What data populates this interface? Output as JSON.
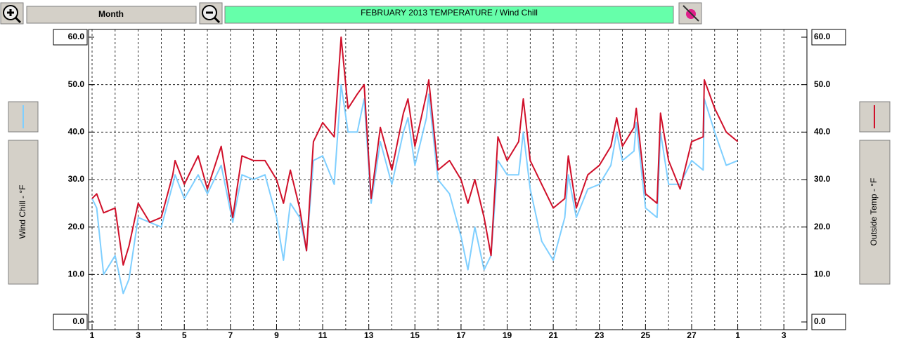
{
  "toolbar": {
    "period": "Month"
  },
  "chart_data": {
    "type": "line",
    "title": "FEBRUARY  2013   TEMPERATURE / Wind Chill",
    "x": [
      1,
      1.2,
      1.5,
      2,
      2.35,
      2.6,
      3,
      3.5,
      4,
      4.5,
      4.6,
      5,
      5.6,
      6,
      6.6,
      7.1,
      7.5,
      8,
      8.5,
      9,
      9.3,
      9.6,
      10,
      10.3,
      10.6,
      11,
      11.5,
      11.8,
      12.1,
      12.5,
      12.8,
      13.1,
      13.5,
      14,
      14.5,
      14.7,
      15,
      15.5,
      15.6,
      16,
      16.5,
      17,
      17.3,
      17.6,
      18,
      18.3,
      18.6,
      19,
      19.5,
      19.7,
      20,
      20.5,
      21,
      21.5,
      21.65,
      22,
      22.5,
      23,
      23.5,
      23.75,
      24,
      24.5,
      24.6,
      25,
      25.5,
      25.65,
      26,
      26.5,
      27,
      27.5,
      27.55,
      28,
      28.5,
      29
    ],
    "series": [
      {
        "name": "Wind Chill - °F",
        "color": "#7fcfff",
        "values": [
          26,
          24,
          10,
          14,
          6,
          9,
          22,
          21,
          20,
          29,
          31,
          26,
          31,
          27,
          33,
          21,
          31,
          30,
          31,
          22,
          13,
          25,
          22,
          15,
          34,
          35,
          29,
          50,
          40,
          40,
          47,
          25,
          38,
          29,
          40,
          43,
          33,
          43,
          48,
          30,
          27,
          18,
          11,
          20,
          11,
          14,
          34,
          31,
          31,
          40,
          28,
          17,
          13,
          22,
          31,
          22,
          28,
          29,
          33,
          40,
          34,
          36,
          42,
          24,
          22,
          40,
          29,
          29,
          34,
          32,
          47,
          40,
          33,
          34
        ]
      },
      {
        "name": "Outside Temp - °F",
        "color": "#d0102a",
        "axis": "y2",
        "values": [
          26,
          27,
          23,
          24,
          12,
          16,
          25,
          21,
          22,
          31,
          34,
          29,
          35,
          28,
          37,
          22,
          35,
          34,
          34,
          30,
          25,
          32,
          24,
          15,
          38,
          42,
          39,
          60,
          45,
          48,
          50,
          26,
          41,
          32,
          44,
          47,
          37,
          48,
          51,
          32,
          34,
          30,
          25,
          30,
          22,
          14,
          39,
          34,
          38,
          47,
          34,
          29,
          24,
          26,
          35,
          24,
          31,
          33,
          37,
          43,
          37,
          41,
          45,
          27,
          25,
          44,
          34,
          28,
          38,
          39,
          51,
          45,
          40,
          38
        ]
      }
    ],
    "xlim": [
      1,
      32
    ],
    "xticks": [
      1,
      3,
      5,
      7,
      9,
      11,
      13,
      15,
      17,
      19,
      21,
      23,
      25,
      27,
      {
        "value": 29,
        "label": "1"
      },
      {
        "value": 31,
        "label": "3"
      }
    ],
    "ylim": [
      0,
      60
    ],
    "yticks": [
      {
        "value": 0,
        "label": "0.0"
      },
      {
        "value": 10,
        "label": "10.0"
      },
      {
        "value": 20,
        "label": "20.0"
      },
      {
        "value": 30,
        "label": "30.0"
      },
      {
        "value": 40,
        "label": "40.0"
      },
      {
        "value": 50,
        "label": "50.0"
      },
      {
        "value": 60,
        "label": "60.0"
      }
    ],
    "y2lim": [
      0,
      60
    ],
    "y2ticks": [
      {
        "value": 0,
        "label": "0.0"
      },
      {
        "value": 10,
        "label": "10.0"
      },
      {
        "value": 20,
        "label": "20.0"
      },
      {
        "value": 30,
        "label": "30.0"
      },
      {
        "value": 40,
        "label": "40.0"
      },
      {
        "value": 50,
        "label": "50.0"
      },
      {
        "value": 60,
        "label": "60.0"
      }
    ],
    "grid": true
  }
}
